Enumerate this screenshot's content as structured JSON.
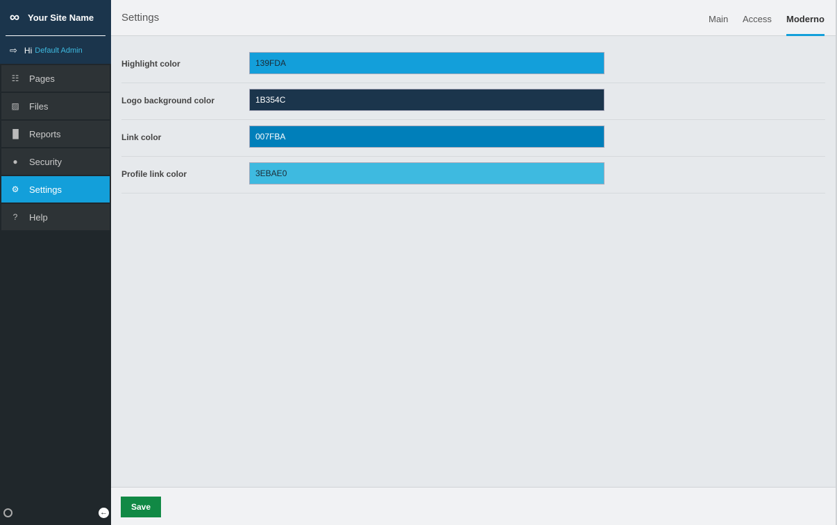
{
  "sidebar": {
    "site_name": "Your Site Name",
    "greeting": "Hi",
    "user": "Default Admin",
    "items": [
      {
        "label": "Pages",
        "icon": "sitemap-icon"
      },
      {
        "label": "Files",
        "icon": "image-icon"
      },
      {
        "label": "Reports",
        "icon": "bar-chart-icon"
      },
      {
        "label": "Security",
        "icon": "user-icon"
      },
      {
        "label": "Settings",
        "icon": "gear-icon",
        "active": true
      },
      {
        "label": "Help",
        "icon": "question-icon"
      }
    ]
  },
  "header": {
    "title": "Settings",
    "tabs": [
      {
        "label": "Main"
      },
      {
        "label": "Access"
      },
      {
        "label": "Moderno",
        "active": true
      }
    ]
  },
  "fields": [
    {
      "label": "Highlight color",
      "value": "139FDA",
      "color": "#139FDA",
      "text_color": "#1b2a35"
    },
    {
      "label": "Logo background color",
      "value": "1B354C",
      "color": "#1B354C",
      "text_color": "#ffffff"
    },
    {
      "label": "Link color",
      "value": "007FBA",
      "color": "#007FBA",
      "text_color": "#ffffff"
    },
    {
      "label": "Profile link color",
      "value": "3EBAE0",
      "color": "#3EBAE0",
      "text_color": "#1b2a35"
    }
  ],
  "footer": {
    "save_label": "Save"
  }
}
